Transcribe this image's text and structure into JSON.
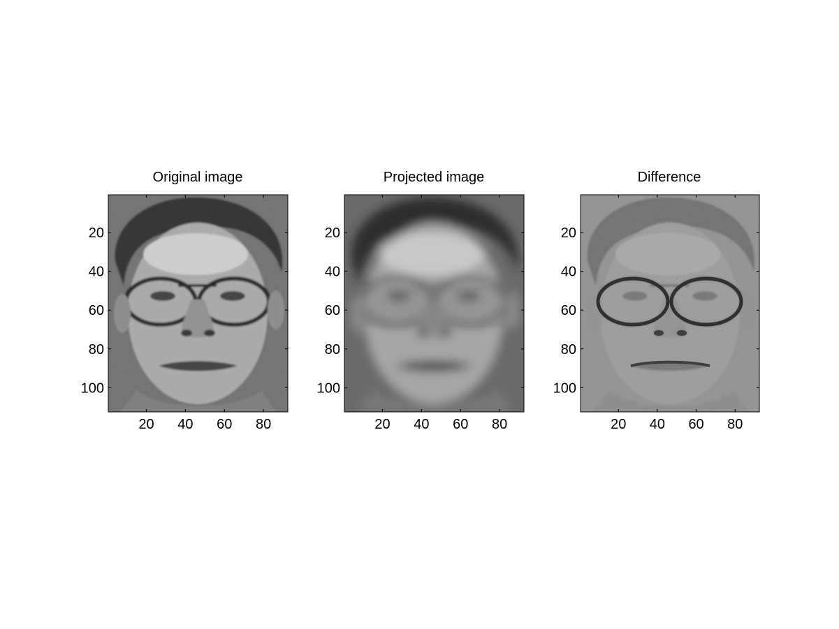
{
  "figure": {
    "panels": [
      {
        "title": "Original image",
        "kind": "original"
      },
      {
        "title": "Projected image",
        "kind": "projected"
      },
      {
        "title": "Difference",
        "kind": "difference"
      }
    ]
  },
  "axes": {
    "x_ticks": [
      "20",
      "40",
      "60",
      "80"
    ],
    "y_ticks": [
      "20",
      "40",
      "60",
      "80",
      "100"
    ],
    "x_range": [
      0.5,
      92.5
    ],
    "y_range": [
      0.5,
      112.5
    ]
  },
  "colors": {
    "background": "#ffffff",
    "colormap": "gray"
  }
}
